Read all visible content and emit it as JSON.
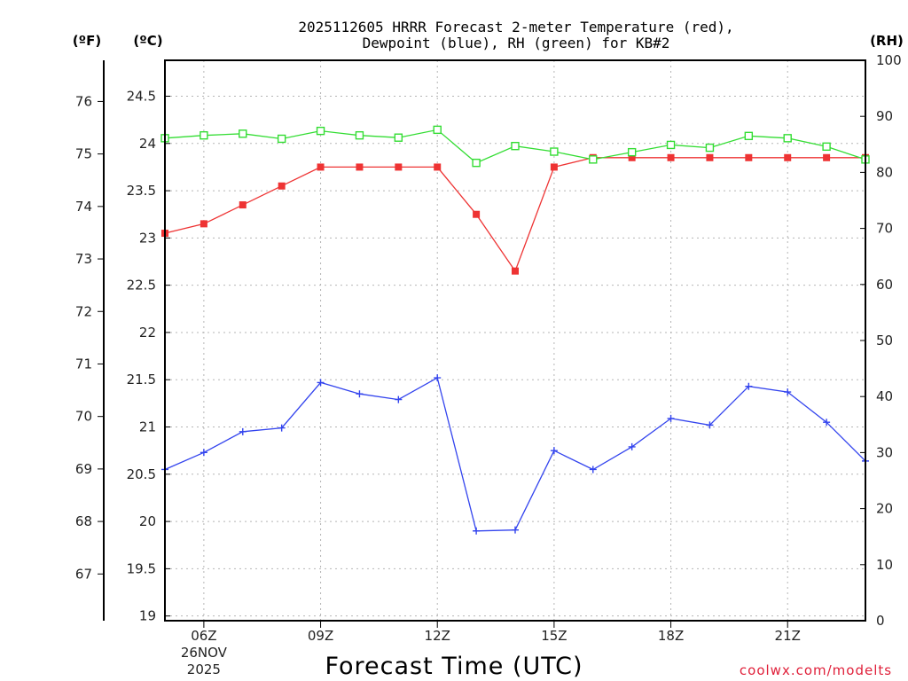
{
  "chart_data": {
    "type": "line",
    "title_lines": [
      "2025112605 HRRR Forecast 2-meter Temperature (red),",
      "Dewpoint (blue), RH (green) for KB#2"
    ],
    "xlabel": "Forecast Time (UTC)",
    "credit": "coolwx.com/modelts",
    "units": {
      "fahrenheit": "(ºF)",
      "celsius": "(ºC)",
      "rh": "(RH)"
    },
    "x_hours": [
      5,
      6,
      7,
      8,
      9,
      10,
      11,
      12,
      13,
      14,
      15,
      16,
      17,
      18,
      19,
      20,
      21,
      22,
      23
    ],
    "x_range": [
      5,
      23
    ],
    "x_ticks": [
      {
        "hour": 6,
        "label": "06Z",
        "sub1": "26NOV",
        "sub2": "2025"
      },
      {
        "hour": 9,
        "label": "09Z"
      },
      {
        "hour": 12,
        "label": "12Z"
      },
      {
        "hour": 15,
        "label": "15Z"
      },
      {
        "hour": 18,
        "label": "18Z"
      },
      {
        "hour": 21,
        "label": "21Z"
      }
    ],
    "celsius_range": [
      18.95,
      24.88
    ],
    "celsius_ticks": [
      "19",
      "19.5",
      "20",
      "20.5",
      "21",
      "21.5",
      "22",
      "22.5",
      "23",
      "23.5",
      "24",
      "24.5"
    ],
    "fahrenheit_ticks": [
      "67",
      "68",
      "69",
      "70",
      "71",
      "72",
      "73",
      "74",
      "75",
      "76"
    ],
    "rh_range": [
      0,
      100
    ],
    "rh_ticks": [
      "0",
      "10",
      "20",
      "30",
      "40",
      "50",
      "60",
      "70",
      "80",
      "90",
      "100"
    ],
    "series": [
      {
        "name": "Temperature",
        "color": "#ee3333",
        "marker": "filled-square",
        "axis": "celsius",
        "values": [
          23.05,
          23.15,
          23.35,
          23.55,
          23.75,
          23.75,
          23.75,
          23.75,
          23.25,
          22.65,
          23.75,
          23.85,
          23.85,
          23.85,
          23.85,
          23.85,
          23.85,
          23.85,
          23.85
        ]
      },
      {
        "name": "Dewpoint",
        "color": "#3344ee",
        "marker": "plus",
        "axis": "celsius",
        "values": [
          20.55,
          20.73,
          20.95,
          20.99,
          21.47,
          21.35,
          21.29,
          21.52,
          19.9,
          19.91,
          20.75,
          20.55,
          20.79,
          21.09,
          21.02,
          21.43,
          21.37,
          21.05,
          20.64
        ]
      },
      {
        "name": "RH",
        "color": "#33dd33",
        "marker": "open-square",
        "axis": "rh",
        "values": [
          86.1,
          86.6,
          86.9,
          86.0,
          87.4,
          86.6,
          86.2,
          87.6,
          81.7,
          84.7,
          83.7,
          82.3,
          83.6,
          84.9,
          84.4,
          86.5,
          86.1,
          84.6,
          82.3
        ]
      }
    ]
  }
}
